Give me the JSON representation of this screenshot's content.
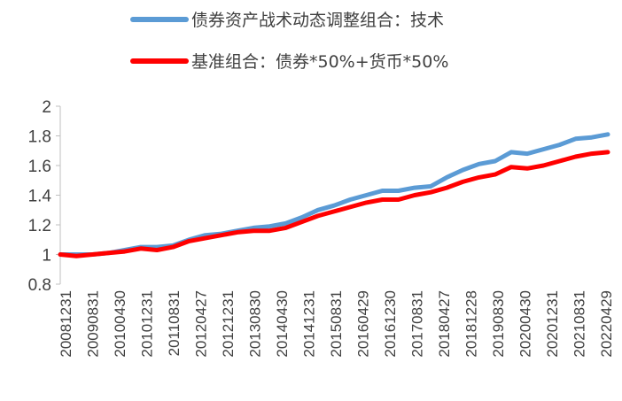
{
  "chart_data": {
    "type": "line",
    "title": "",
    "xlabel": "",
    "ylabel": "",
    "ylim": [
      0.8,
      2
    ],
    "yticks": [
      "0.8",
      "1",
      "1.2",
      "1.4",
      "1.6",
      "1.8",
      "2"
    ],
    "x_tick_labels": [
      "20081231",
      "20090831",
      "20100430",
      "20101231",
      "20110831",
      "20120427",
      "20121231",
      "20130830",
      "20140430",
      "20141231",
      "20150831",
      "20160429",
      "20161230",
      "20170831",
      "20180427",
      "20181228",
      "20190830",
      "20200430",
      "20201231",
      "20210831",
      "20220429"
    ],
    "grid": false,
    "legend_position": "top",
    "series": [
      {
        "name": "债券资产战术动态调整组合：技术",
        "color": "#5B9BD5",
        "values": [
          1.0,
          1.0,
          1.0,
          1.01,
          1.03,
          1.05,
          1.05,
          1.06,
          1.1,
          1.13,
          1.14,
          1.16,
          1.18,
          1.19,
          1.21,
          1.25,
          1.3,
          1.33,
          1.37,
          1.4,
          1.43,
          1.43,
          1.45,
          1.46,
          1.52,
          1.57,
          1.61,
          1.63,
          1.69,
          1.68,
          1.71,
          1.74,
          1.78,
          1.79,
          1.81
        ]
      },
      {
        "name": "基准组合：债券*50%+货币*50%",
        "color": "#FF0000",
        "values": [
          1.0,
          0.99,
          1.0,
          1.01,
          1.02,
          1.04,
          1.03,
          1.05,
          1.09,
          1.11,
          1.13,
          1.15,
          1.16,
          1.16,
          1.18,
          1.22,
          1.26,
          1.29,
          1.32,
          1.35,
          1.37,
          1.37,
          1.4,
          1.42,
          1.45,
          1.49,
          1.52,
          1.54,
          1.59,
          1.58,
          1.6,
          1.63,
          1.66,
          1.68,
          1.69
        ]
      }
    ]
  }
}
